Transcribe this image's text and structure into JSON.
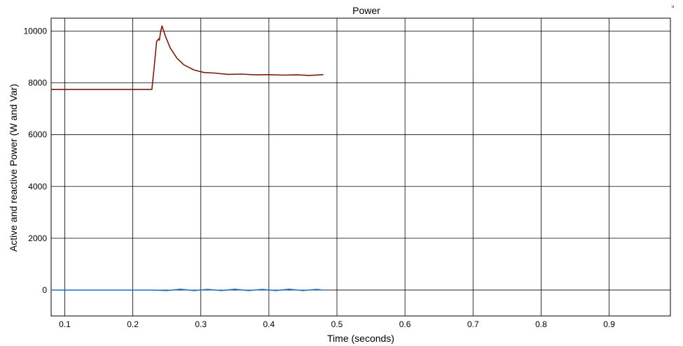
{
  "chart_data": {
    "type": "line",
    "title": "Power",
    "xlabel": "Time (seconds)",
    "ylabel": "Active and reactive Power (W and Var)",
    "xlim": [
      0.08,
      0.99
    ],
    "ylim": [
      -1000,
      10500
    ],
    "grid": true,
    "xticks": [
      0.1,
      0.2,
      0.3,
      0.4,
      0.5,
      0.6,
      0.7,
      0.8,
      0.9
    ],
    "xtick_labels": [
      "0.1",
      "0.2",
      "0.3",
      "0.4",
      "0.5",
      "0.6",
      "0.7",
      "0.8",
      "0.9"
    ],
    "yticks": [
      0,
      2000,
      4000,
      6000,
      8000,
      10000
    ],
    "ytick_labels": [
      "0",
      "2000",
      "4000",
      "6000",
      "8000",
      "10000"
    ],
    "series": [
      {
        "color": "#7a1a0e",
        "x": [
          0.08,
          0.1,
          0.15,
          0.2,
          0.228,
          0.231,
          0.235,
          0.238,
          0.239,
          0.241,
          0.243,
          0.248,
          0.255,
          0.265,
          0.275,
          0.29,
          0.305,
          0.32,
          0.34,
          0.36,
          0.38,
          0.4,
          0.42,
          0.44,
          0.46,
          0.48
        ],
        "y": [
          7750,
          7750,
          7750,
          7750,
          7750,
          8500,
          9600,
          9700,
          9650,
          10000,
          10200,
          9800,
          9350,
          8950,
          8700,
          8500,
          8400,
          8380,
          8330,
          8340,
          8310,
          8320,
          8300,
          8310,
          8290,
          8320
        ]
      },
      {
        "color": "#1f6fbf",
        "x": [
          0.08,
          0.1,
          0.15,
          0.2,
          0.23,
          0.25,
          0.27,
          0.29,
          0.31,
          0.33,
          0.35,
          0.37,
          0.39,
          0.41,
          0.43,
          0.45,
          0.47,
          0.48
        ],
        "y": [
          0,
          0,
          0,
          0,
          0,
          -20,
          30,
          -20,
          25,
          -20,
          30,
          -20,
          25,
          -20,
          30,
          -20,
          25,
          0
        ]
      }
    ]
  },
  "corner_mark": "ᵘ"
}
